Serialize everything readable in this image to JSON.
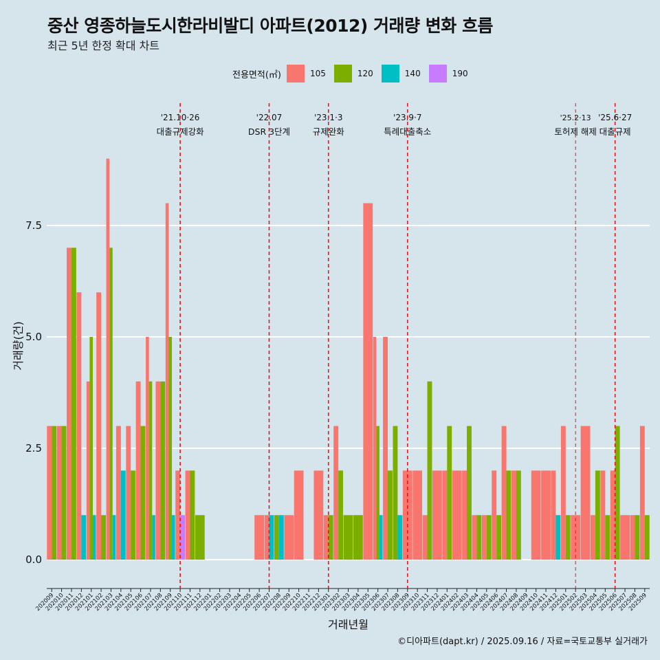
{
  "title": "중산 영종하늘도시한라비발디 아파트(2012) 거래량 변화 흐름",
  "subtitle": "최근 5년 한정 확대 차트",
  "legend": {
    "title": "전용면적(㎡)",
    "items": [
      {
        "label": "105",
        "color": "#f8766d"
      },
      {
        "label": "120",
        "color": "#7cae00"
      },
      {
        "label": "140",
        "color": "#00bfc4"
      },
      {
        "label": "190",
        "color": "#c77cff"
      }
    ]
  },
  "caption": "©디아파트(dapt.kr) / 2025.09.16 / 자료=국토교통부 실거래가",
  "chart_data": {
    "type": "bar",
    "xlabel": "거래년월",
    "ylabel": "거래량(건)",
    "ylim": [
      -0.4,
      10.4
    ],
    "yticks": [
      "0.0",
      "2.5",
      "5.0",
      "7.5"
    ],
    "grid": true,
    "legend_position": "top",
    "categories": [
      "202009",
      "202010",
      "202011",
      "202012",
      "202101",
      "202102",
      "202103",
      "202104",
      "202105",
      "202106",
      "202107",
      "202108",
      "202109",
      "202110",
      "202111",
      "202112",
      "202201",
      "202202",
      "202203",
      "202204",
      "202205",
      "202206",
      "202207",
      "202208",
      "202209",
      "202210",
      "202211",
      "202212",
      "202301",
      "202302",
      "202303",
      "202304",
      "202305",
      "202306",
      "202307",
      "202308",
      "202309",
      "202310",
      "202311",
      "202312",
      "202401",
      "202402",
      "202403",
      "202404",
      "202405",
      "202406",
      "202407",
      "202408",
      "202409",
      "202410",
      "202411",
      "202412",
      "202501",
      "202502",
      "202503",
      "202504",
      "202505",
      "202506",
      "202507",
      "202508",
      "202509"
    ],
    "tick_labels": [
      "202009",
      "202010",
      "202011",
      "202012",
      "202101",
      "202102",
      "202103",
      "202104",
      "202105",
      "202106",
      "202107",
      "202108",
      "202109",
      "202110",
      "202111",
      "202112",
      "202201",
      "202202",
      "202203",
      "202204",
      "202205",
      "202206",
      "202207",
      "202208",
      "202209",
      "202210",
      "202211",
      "202212",
      "202301",
      "202302",
      "202303",
      "202304",
      "202305",
      "202306",
      "202307",
      "202308",
      "202309",
      "202310",
      "202311",
      "202312",
      "202401",
      "202402",
      "202403",
      "202404",
      "202405",
      "202406",
      "202407",
      "202408",
      "202409",
      "202410",
      "202411",
      "202412",
      "202501",
      "202502",
      "202503",
      "202504",
      "202505",
      "202506",
      "202507",
      "202508",
      "202509"
    ],
    "series": [
      {
        "name": "105",
        "color": "#f8766d",
        "values": [
          3,
          3,
          7,
          6,
          4,
          6,
          9,
          3,
          3,
          4,
          5,
          4,
          8,
          2,
          2,
          0,
          0,
          0,
          0,
          0,
          0,
          1,
          1,
          0,
          1,
          2,
          0,
          2,
          1,
          3,
          0,
          0,
          8,
          5,
          5,
          0,
          2,
          2,
          1,
          2,
          2,
          2,
          2,
          1,
          1,
          2,
          3,
          2,
          0,
          2,
          2,
          2,
          3,
          1,
          3,
          1,
          2,
          2,
          1,
          1,
          3
        ]
      },
      {
        "name": "120",
        "color": "#7cae00",
        "values": [
          3,
          3,
          7,
          0,
          5,
          1,
          7,
          0,
          2,
          3,
          4,
          4,
          5,
          0,
          2,
          1,
          0,
          0,
          0,
          0,
          0,
          0,
          0,
          1,
          0,
          0,
          0,
          0,
          1,
          2,
          1,
          1,
          0,
          3,
          2,
          3,
          0,
          0,
          4,
          0,
          3,
          0,
          3,
          1,
          1,
          1,
          2,
          2,
          0,
          0,
          0,
          0,
          1,
          0,
          0,
          2,
          1,
          3,
          0,
          1,
          1
        ]
      },
      {
        "name": "140",
        "color": "#00bfc4",
        "values": [
          0,
          0,
          0,
          1,
          1,
          0,
          1,
          2,
          0,
          0,
          1,
          0,
          1,
          0,
          0,
          0,
          0,
          0,
          0,
          0,
          0,
          0,
          1,
          1,
          0,
          0,
          0,
          0,
          0,
          0,
          0,
          0,
          0,
          1,
          0,
          1,
          0,
          0,
          0,
          0,
          0,
          0,
          0,
          0,
          0,
          0,
          0,
          0,
          0,
          0,
          0,
          1,
          0,
          0,
          0,
          0,
          0,
          0,
          0,
          0,
          0
        ]
      },
      {
        "name": "190",
        "color": "#c77cff",
        "values": [
          0,
          0,
          0,
          0,
          0,
          0,
          0,
          0,
          0,
          0,
          0,
          0,
          0,
          1,
          0,
          0,
          0,
          0,
          0,
          0,
          0,
          0,
          0,
          0,
          0,
          0,
          0,
          0,
          0,
          0,
          0,
          0,
          0,
          0,
          0,
          0,
          0,
          0,
          0,
          0,
          0,
          0,
          0,
          0,
          0,
          0,
          0,
          0,
          0,
          0,
          0,
          0,
          0,
          0,
          0,
          0,
          0,
          0,
          0,
          0,
          0
        ]
      }
    ],
    "annotations": [
      {
        "at": "202110",
        "date": "'21.10·26",
        "text": "대출규제강화"
      },
      {
        "at": "202207",
        "date": "'22.07",
        "text": "DSR 3단계"
      },
      {
        "at": "202301",
        "date": "'23.1·3",
        "text": "규제완화"
      },
      {
        "at": "202309",
        "date": "'23.9·7",
        "text": "특례대출축소"
      },
      {
        "at": "202502",
        "date": "'25.2·13",
        "text": "토허제 해제"
      },
      {
        "at": "202506",
        "date": "'25.6·27",
        "text": "대출규제"
      }
    ]
  }
}
